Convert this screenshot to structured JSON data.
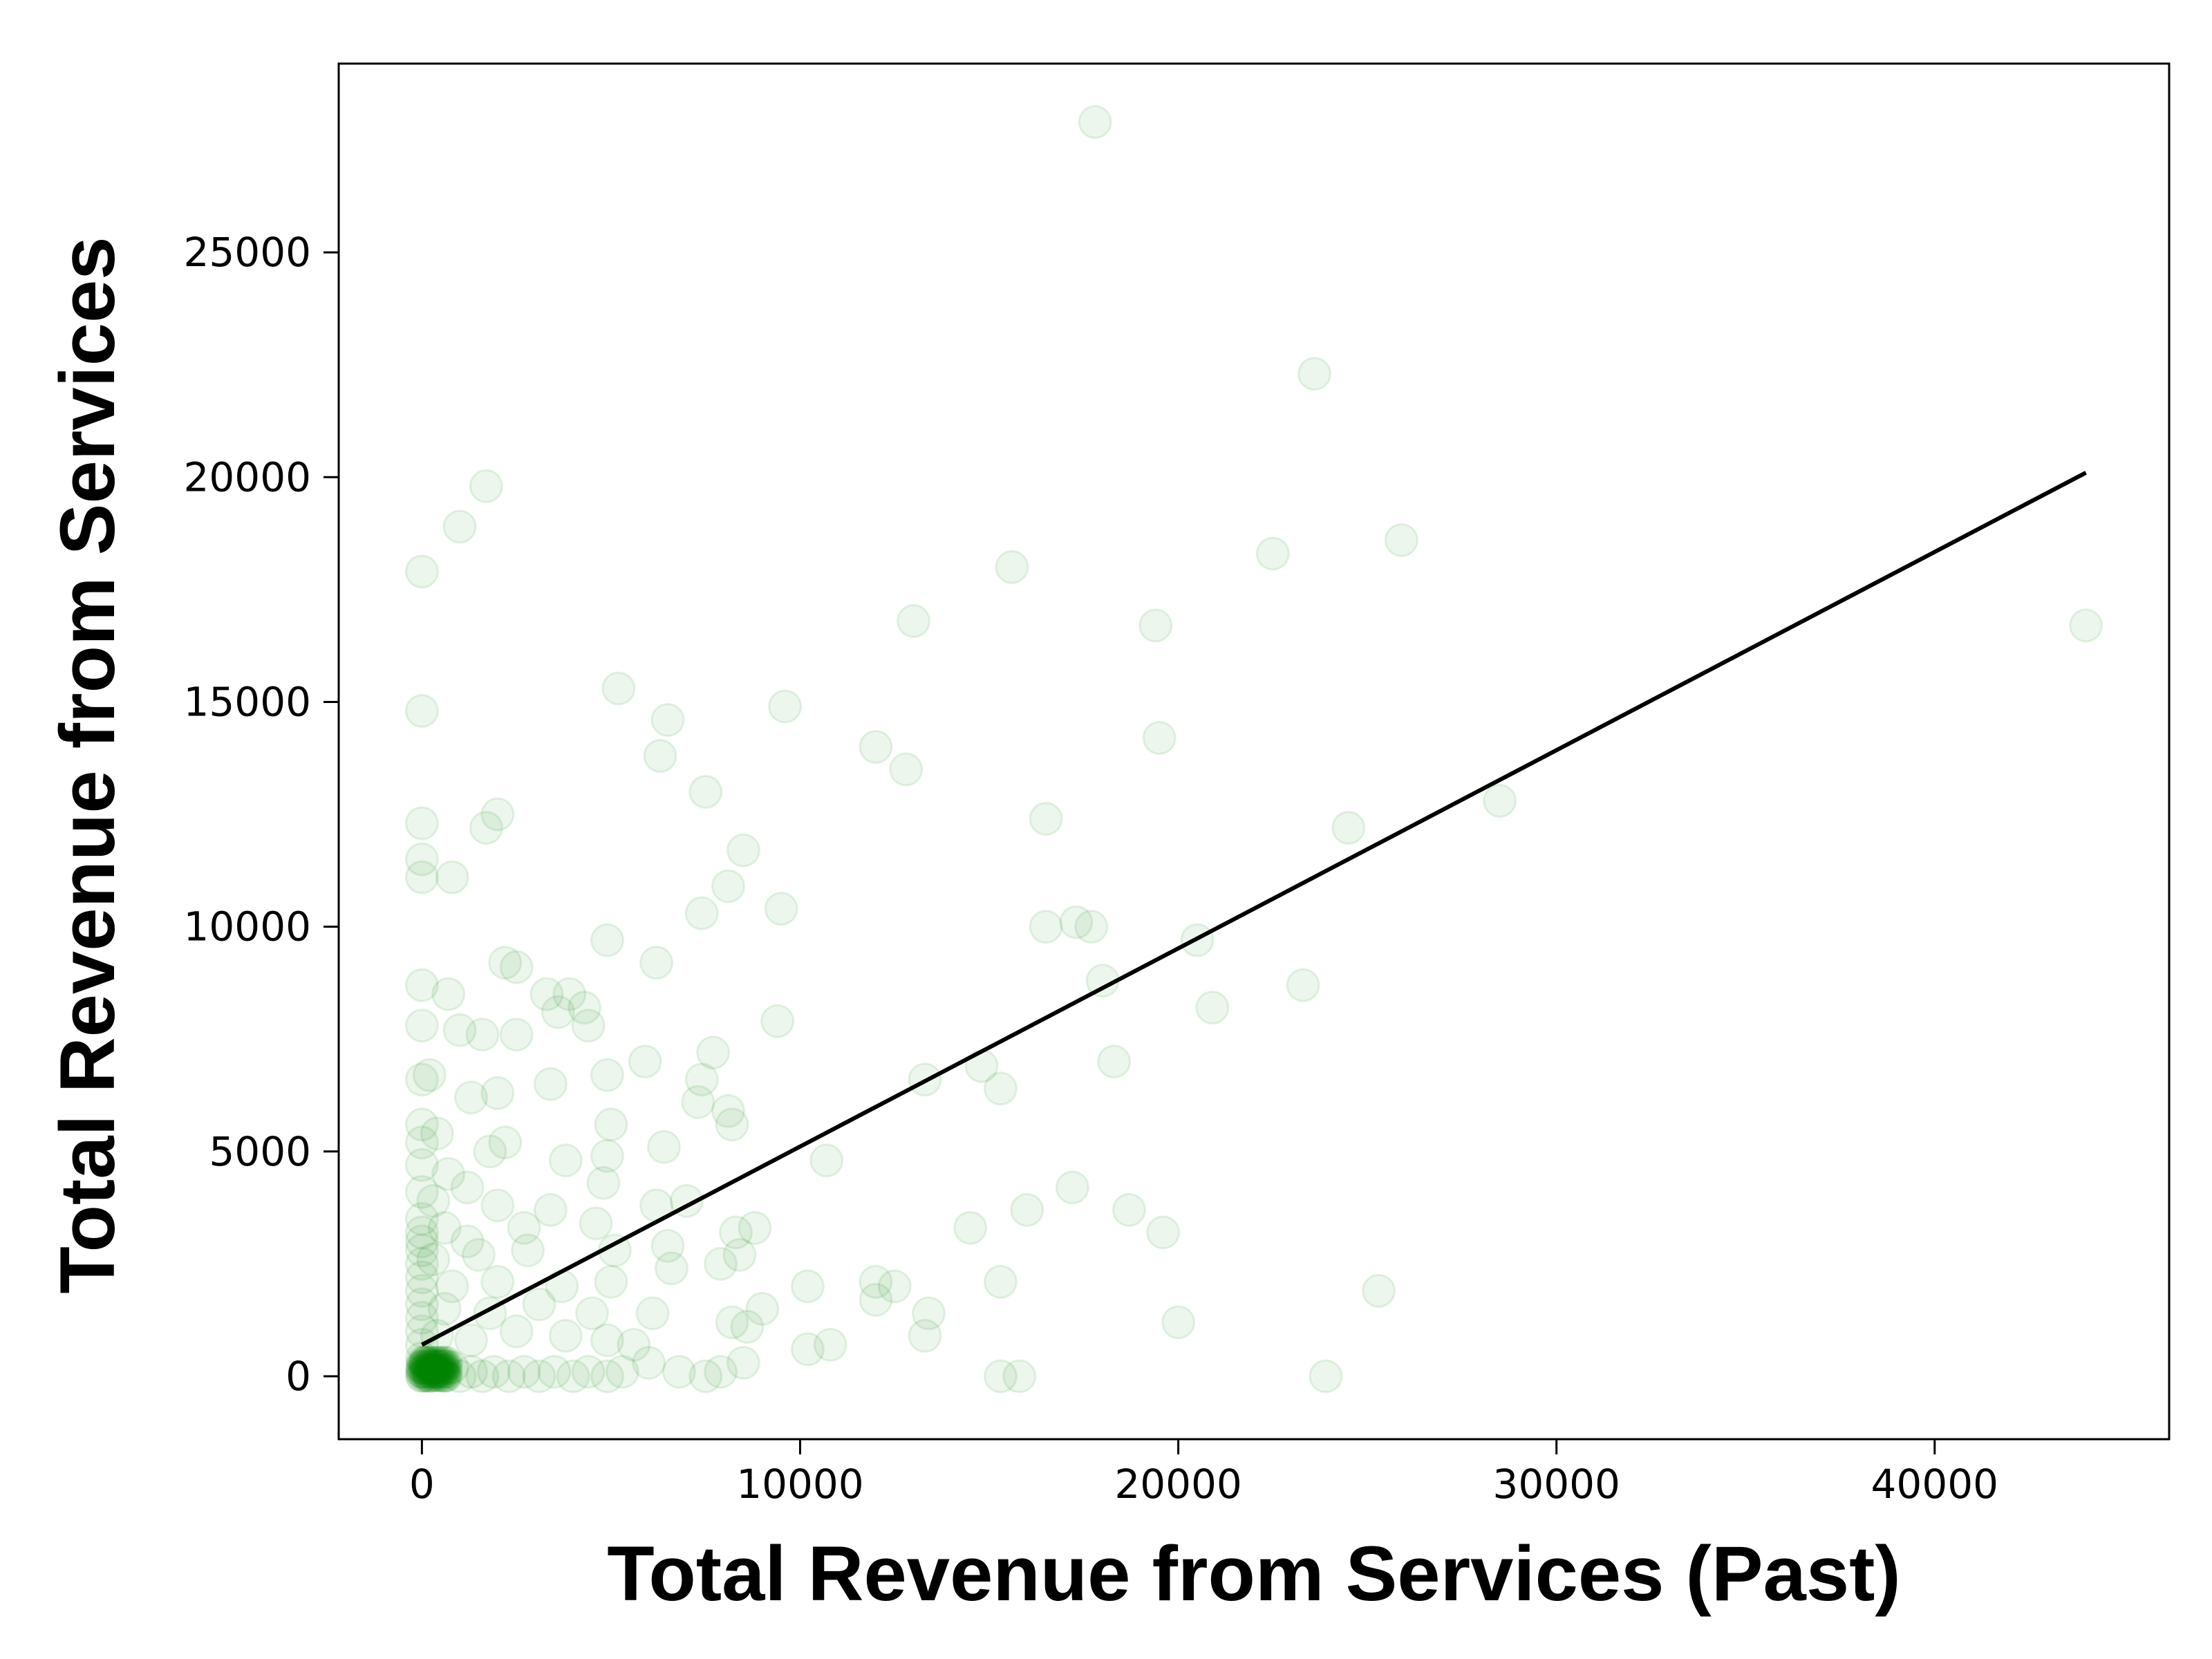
{
  "chart_data": {
    "type": "scatter",
    "title": "",
    "xlabel": "Total Revenue from Services (Past)",
    "ylabel": "Total Revenue from Services",
    "xlim": [
      -2200,
      46200
    ],
    "ylim": [
      -1400,
      29200
    ],
    "xticks": [
      0,
      10000,
      20000,
      30000,
      40000
    ],
    "yticks": [
      0,
      5000,
      10000,
      15000,
      20000,
      25000
    ],
    "grid": false,
    "legend": "none",
    "point_color": "#008000",
    "point_alpha": 0.07,
    "line_color": "#000000",
    "series": [
      {
        "kind": "points",
        "points": [
          [
            17800,
            27900
          ],
          [
            23600,
            22300
          ],
          [
            1700,
            19800
          ],
          [
            1000,
            18900
          ],
          [
            0,
            17900
          ],
          [
            25900,
            18600
          ],
          [
            22500,
            18300
          ],
          [
            15600,
            18000
          ],
          [
            13000,
            16800
          ],
          [
            19400,
            16700
          ],
          [
            44000,
            16700
          ],
          [
            5200,
            15300
          ],
          [
            0,
            14800
          ],
          [
            6500,
            14600
          ],
          [
            9600,
            14900
          ],
          [
            12000,
            14000
          ],
          [
            6300,
            13800
          ],
          [
            12800,
            13500
          ],
          [
            19500,
            14200
          ],
          [
            7500,
            13000
          ],
          [
            0,
            12300
          ],
          [
            2000,
            12500
          ],
          [
            1700,
            12200
          ],
          [
            16500,
            12400
          ],
          [
            24500,
            12200
          ],
          [
            28500,
            12800
          ],
          [
            0,
            11500
          ],
          [
            0,
            11100
          ],
          [
            800,
            11100
          ],
          [
            8500,
            11700
          ],
          [
            8100,
            10900
          ],
          [
            7400,
            10300
          ],
          [
            9500,
            10400
          ],
          [
            16500,
            10000
          ],
          [
            17300,
            10100
          ],
          [
            17700,
            10000
          ],
          [
            20500,
            9700
          ],
          [
            4900,
            9700
          ],
          [
            6200,
            9200
          ],
          [
            2200,
            9200
          ],
          [
            2500,
            9100
          ],
          [
            18000,
            8800
          ],
          [
            23300,
            8700
          ],
          [
            0,
            8700
          ],
          [
            700,
            8500
          ],
          [
            3300,
            8500
          ],
          [
            3900,
            8500
          ],
          [
            4300,
            8200
          ],
          [
            4400,
            7800
          ],
          [
            3600,
            8100
          ],
          [
            20900,
            8200
          ],
          [
            9400,
            7900
          ],
          [
            0,
            7800
          ],
          [
            1000,
            7700
          ],
          [
            1600,
            7600
          ],
          [
            2500,
            7600
          ],
          [
            18300,
            7000
          ],
          [
            7700,
            7200
          ],
          [
            5900,
            7000
          ],
          [
            4900,
            6700
          ],
          [
            7400,
            6600
          ],
          [
            13300,
            6600
          ],
          [
            14800,
            6900
          ],
          [
            15300,
            6400
          ],
          [
            0,
            6600
          ],
          [
            200,
            6700
          ],
          [
            3400,
            6500
          ],
          [
            1300,
            6200
          ],
          [
            2000,
            6300
          ],
          [
            7300,
            6100
          ],
          [
            8100,
            5900
          ],
          [
            5000,
            5600
          ],
          [
            8200,
            5600
          ],
          [
            0,
            5600
          ],
          [
            0,
            5200
          ],
          [
            400,
            5400
          ],
          [
            1800,
            5000
          ],
          [
            2200,
            5200
          ],
          [
            6400,
            5100
          ],
          [
            10700,
            4800
          ],
          [
            3800,
            4800
          ],
          [
            4900,
            4900
          ],
          [
            0,
            4700
          ],
          [
            700,
            4500
          ],
          [
            1200,
            4200
          ],
          [
            4800,
            4300
          ],
          [
            17200,
            4200
          ],
          [
            0,
            4100
          ],
          [
            300,
            3900
          ],
          [
            2000,
            3800
          ],
          [
            3400,
            3700
          ],
          [
            6200,
            3800
          ],
          [
            7000,
            3900
          ],
          [
            16000,
            3700
          ],
          [
            18700,
            3700
          ],
          [
            0,
            3500
          ],
          [
            0,
            3200
          ],
          [
            0,
            3000
          ],
          [
            600,
            3300
          ],
          [
            1200,
            3000
          ],
          [
            2700,
            3300
          ],
          [
            4600,
            3400
          ],
          [
            8300,
            3200
          ],
          [
            8800,
            3300
          ],
          [
            14500,
            3300
          ],
          [
            19600,
            3200
          ],
          [
            0,
            2800
          ],
          [
            0,
            2500
          ],
          [
            300,
            2600
          ],
          [
            1500,
            2700
          ],
          [
            2800,
            2800
          ],
          [
            5100,
            2800
          ],
          [
            6500,
            2900
          ],
          [
            7900,
            2500
          ],
          [
            8400,
            2700
          ],
          [
            0,
            2200
          ],
          [
            0,
            1900
          ],
          [
            800,
            2000
          ],
          [
            2000,
            2100
          ],
          [
            3700,
            2000
          ],
          [
            5000,
            2100
          ],
          [
            6600,
            2400
          ],
          [
            10200,
            2000
          ],
          [
            12000,
            2100
          ],
          [
            12500,
            2000
          ],
          [
            15300,
            2100
          ],
          [
            25300,
            1900
          ],
          [
            0,
            1600
          ],
          [
            0,
            1300
          ],
          [
            600,
            1500
          ],
          [
            1800,
            1400
          ],
          [
            3100,
            1600
          ],
          [
            4500,
            1400
          ],
          [
            6100,
            1400
          ],
          [
            8200,
            1200
          ],
          [
            9000,
            1500
          ],
          [
            12000,
            1700
          ],
          [
            13400,
            1400
          ],
          [
            0,
            1000
          ],
          [
            0,
            700
          ],
          [
            400,
            900
          ],
          [
            1300,
            800
          ],
          [
            2500,
            1000
          ],
          [
            3800,
            900
          ],
          [
            4900,
            800
          ],
          [
            5600,
            700
          ],
          [
            8600,
            1100
          ],
          [
            13300,
            900
          ],
          [
            20000,
            1200
          ],
          [
            10200,
            600
          ],
          [
            10800,
            700
          ],
          [
            0,
            400
          ],
          [
            0,
            200
          ],
          [
            0,
            0
          ],
          [
            0,
            100
          ],
          [
            100,
            300
          ],
          [
            200,
            0
          ],
          [
            400,
            100
          ],
          [
            600,
            0
          ],
          [
            800,
            200
          ],
          [
            1000,
            0
          ],
          [
            1300,
            100
          ],
          [
            1600,
            0
          ],
          [
            1900,
            100
          ],
          [
            2300,
            0
          ],
          [
            2700,
            100
          ],
          [
            3100,
            0
          ],
          [
            3500,
            100
          ],
          [
            4000,
            0
          ],
          [
            4400,
            100
          ],
          [
            4900,
            0
          ],
          [
            5300,
            100
          ],
          [
            6000,
            300
          ],
          [
            6800,
            100
          ],
          [
            7500,
            0
          ],
          [
            7900,
            100
          ],
          [
            8500,
            300
          ],
          [
            15300,
            0
          ],
          [
            15800,
            0
          ],
          [
            23900,
            0
          ]
        ]
      },
      {
        "kind": "line",
        "points": [
          [
            0,
            700
          ],
          [
            44000,
            20100
          ]
        ]
      }
    ]
  }
}
